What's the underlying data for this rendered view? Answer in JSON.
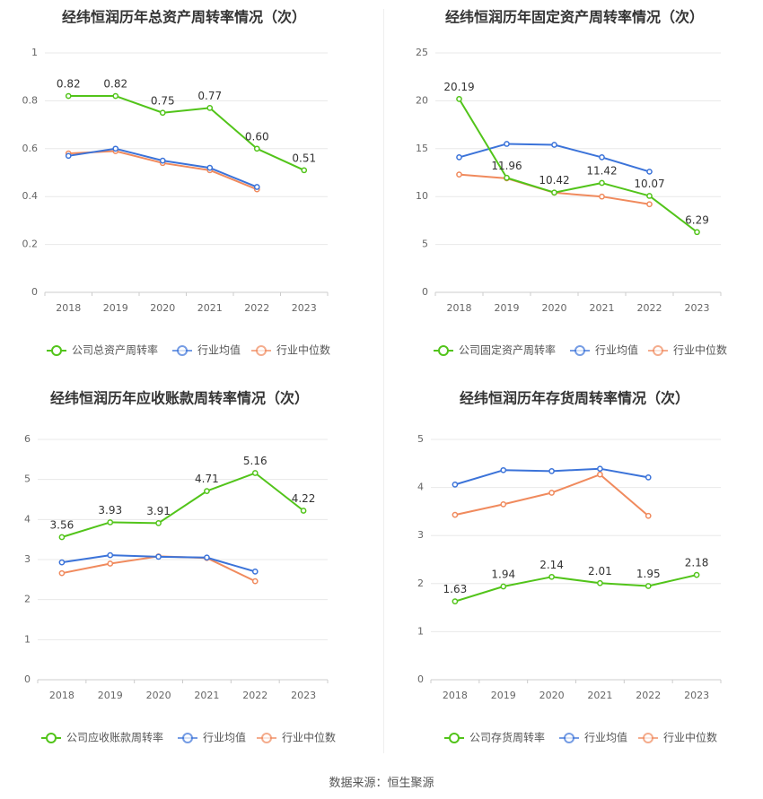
{
  "source": "数据来源：恒生聚源",
  "chart_data": [
    {
      "type": "line",
      "title": "经纬恒润历年总资产周转率情况（次）",
      "categories": [
        "2018",
        "2019",
        "2020",
        "2021",
        "2022",
        "2023"
      ],
      "ylim": [
        0,
        1
      ],
      "yticks": [
        "0",
        "0.2",
        "0.4",
        "0.6",
        "0.8",
        "1"
      ],
      "ytick_values": [
        0,
        0.2,
        0.4,
        0.6,
        0.8,
        1
      ],
      "series": [
        {
          "name": "公司总资产周转率",
          "color": "#52c41a",
          "values": [
            0.82,
            0.82,
            0.75,
            0.77,
            0.6,
            0.51
          ],
          "labels": [
            "0.82",
            "0.82",
            "0.75",
            "0.77",
            "0.60",
            "0.51"
          ]
        },
        {
          "name": "行业均值",
          "color": "#3b73d9",
          "values": [
            0.57,
            0.6,
            0.55,
            0.52,
            0.44,
            null
          ]
        },
        {
          "name": "行业中位数",
          "color": "#f08a5d",
          "values": [
            0.58,
            0.59,
            0.54,
            0.51,
            0.43,
            null
          ]
        }
      ]
    },
    {
      "type": "line",
      "title": "经纬恒润历年固定资产周转率情况（次）",
      "categories": [
        "2018",
        "2019",
        "2020",
        "2021",
        "2022",
        "2023"
      ],
      "ylim": [
        0,
        25
      ],
      "yticks": [
        "0",
        "5",
        "10",
        "15",
        "20",
        "25"
      ],
      "ytick_values": [
        0,
        5,
        10,
        15,
        20,
        25
      ],
      "series": [
        {
          "name": "公司固定资产周转率",
          "color": "#52c41a",
          "values": [
            20.19,
            11.96,
            10.42,
            11.42,
            10.07,
            6.29
          ],
          "labels": [
            "20.19",
            "11.96",
            "10.42",
            "11.42",
            "10.07",
            "6.29"
          ]
        },
        {
          "name": "行业均值",
          "color": "#3b73d9",
          "values": [
            14.1,
            15.5,
            15.4,
            14.1,
            12.6,
            null
          ]
        },
        {
          "name": "行业中位数",
          "color": "#f08a5d",
          "values": [
            12.3,
            11.9,
            10.4,
            10.0,
            9.2,
            null
          ]
        }
      ]
    },
    {
      "type": "line",
      "title": "经纬恒润历年应收账款周转率情况（次）",
      "categories": [
        "2018",
        "2019",
        "2020",
        "2021",
        "2022",
        "2023"
      ],
      "ylim": [
        0,
        6
      ],
      "yticks": [
        "0",
        "1",
        "2",
        "3",
        "4",
        "5",
        "6"
      ],
      "ytick_values": [
        0,
        1,
        2,
        3,
        4,
        5,
        6
      ],
      "series": [
        {
          "name": "公司应收账款周转率",
          "color": "#52c41a",
          "values": [
            3.56,
            3.93,
            3.91,
            4.71,
            5.16,
            4.22
          ],
          "labels": [
            "3.56",
            "3.93",
            "3.91",
            "4.71",
            "5.16",
            "4.22"
          ]
        },
        {
          "name": "行业均值",
          "color": "#3b73d9",
          "values": [
            2.93,
            3.11,
            3.07,
            3.05,
            2.7,
            null
          ]
        },
        {
          "name": "行业中位数",
          "color": "#f08a5d",
          "values": [
            2.66,
            2.9,
            3.08,
            3.04,
            2.46,
            null
          ]
        }
      ]
    },
    {
      "type": "line",
      "title": "经纬恒润历年存货周转率情况（次）",
      "categories": [
        "2018",
        "2019",
        "2020",
        "2021",
        "2022",
        "2023"
      ],
      "ylim": [
        0,
        5
      ],
      "yticks": [
        "0",
        "1",
        "2",
        "3",
        "4",
        "5"
      ],
      "ytick_values": [
        0,
        1,
        2,
        3,
        4,
        5
      ],
      "series": [
        {
          "name": "公司存货周转率",
          "color": "#52c41a",
          "values": [
            1.63,
            1.94,
            2.14,
            2.01,
            1.95,
            2.18
          ],
          "labels": [
            "1.63",
            "1.94",
            "2.14",
            "2.01",
            "1.95",
            "2.18"
          ]
        },
        {
          "name": "行业均值",
          "color": "#3b73d9",
          "values": [
            4.06,
            4.36,
            4.34,
            4.39,
            4.21,
            null
          ]
        },
        {
          "name": "行业中位数",
          "color": "#f08a5d",
          "values": [
            3.43,
            3.65,
            3.89,
            4.27,
            3.41,
            null
          ]
        }
      ]
    }
  ]
}
